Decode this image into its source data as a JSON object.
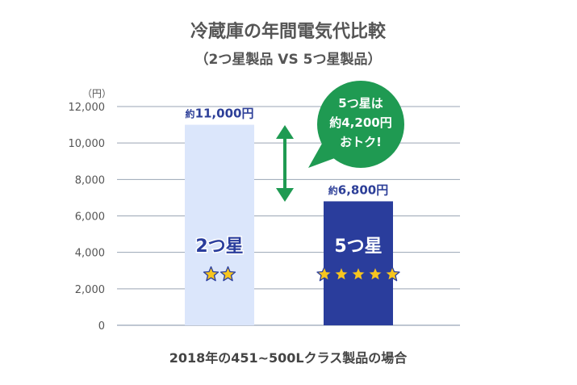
{
  "chart_data": {
    "type": "bar",
    "title": "冷蔵庫の年間電気代比較",
    "subtitle": "（2つ星製品 VS 5つ星製品）",
    "yunit": "（円）",
    "categories": [
      "2つ星",
      "5つ星"
    ],
    "values": [
      11000,
      6800
    ],
    "stars": [
      2,
      5
    ],
    "data_labels": [
      {
        "prefix": "約",
        "value": "11,000円"
      },
      {
        "prefix": "約",
        "value": "6,800円"
      }
    ],
    "ylim": [
      0,
      12000
    ],
    "yticks": [
      0,
      2000,
      4000,
      6000,
      8000,
      10000,
      12000
    ],
    "ytick_labels": [
      "0",
      "2,000",
      "4,000",
      "6,000",
      "8,000",
      "10,000",
      "12,000"
    ],
    "grid": true,
    "colors": [
      "#dbe6fb",
      "#2a3d9c"
    ],
    "callout": {
      "lines": [
        "5つ星は",
        "約4,200円",
        "おトク!"
      ],
      "color": "#1f9a52"
    },
    "footnote": "2018年の451~500Lクラス製品の場合"
  }
}
